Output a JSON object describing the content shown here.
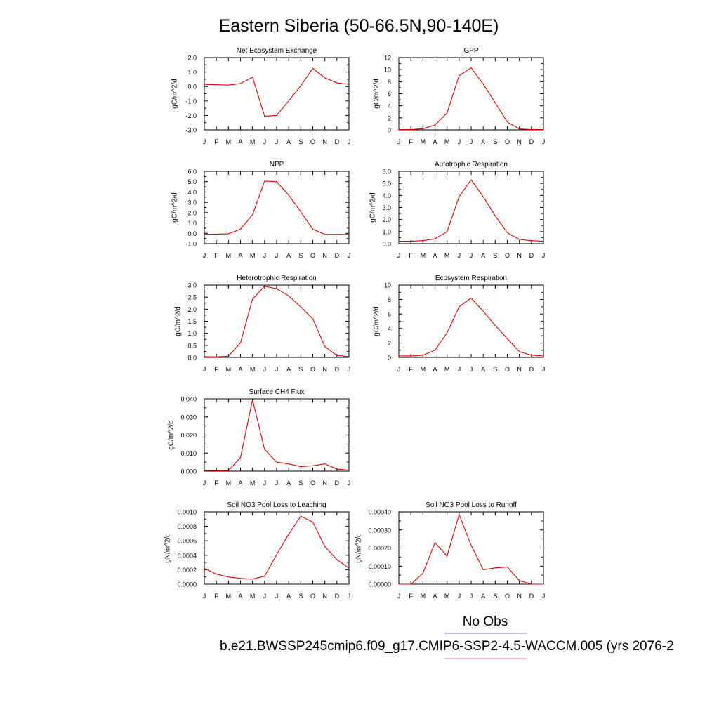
{
  "title": "Eastern Siberia (50-66.5N,90-140E)",
  "legend": {
    "obs_label": "No Obs",
    "obs_color": "#8080ff",
    "case_label": "b.e21.BWSSP245cmip6.f09_g17.CMIP6-SSP2-4.5-WACCM.005 (yrs 2076-2",
    "case_color": "#ff8080"
  },
  "line_color": "#dd0000",
  "chart_data": [
    {
      "type": "line",
      "title": "Net Ecosystem Exchange",
      "ylabel": "gC/m^2/d",
      "categories": [
        "J",
        "F",
        "M",
        "A",
        "M",
        "J",
        "J",
        "A",
        "S",
        "O",
        "N",
        "D",
        "J"
      ],
      "ylim": [
        -3.0,
        2.0
      ],
      "yticks": [
        "-3.0",
        "-2.0",
        "-1.0",
        "0.0",
        "1.0",
        "2.0"
      ],
      "minor_per_major": 2,
      "values": [
        0.15,
        0.12,
        0.1,
        0.2,
        0.65,
        -2.05,
        -2.0,
        -1.0,
        0.05,
        1.25,
        0.6,
        0.25,
        0.15
      ]
    },
    {
      "type": "line",
      "title": "GPP",
      "ylabel": "gC/m^2/d",
      "categories": [
        "J",
        "F",
        "M",
        "A",
        "M",
        "J",
        "J",
        "A",
        "S",
        "O",
        "N",
        "D",
        "J"
      ],
      "ylim": [
        0,
        12
      ],
      "yticks": [
        "0",
        "2",
        "4",
        "6",
        "8",
        "10",
        "12"
      ],
      "minor_per_major": 2,
      "values": [
        0.05,
        0.05,
        0.2,
        0.8,
        2.8,
        9.0,
        10.3,
        7.6,
        4.5,
        1.3,
        0.15,
        0.05,
        0.05
      ]
    },
    {
      "type": "line",
      "title": "NPP",
      "ylabel": "gC/m^2/d",
      "categories": [
        "J",
        "F",
        "M",
        "A",
        "M",
        "J",
        "J",
        "A",
        "S",
        "O",
        "N",
        "D",
        "J"
      ],
      "ylim": [
        -1.0,
        6.0
      ],
      "yticks": [
        "-1.0",
        "0.0",
        "1.0",
        "2.0",
        "3.0",
        "4.0",
        "5.0",
        "6.0"
      ],
      "minor_per_major": 2,
      "values": [
        -0.1,
        -0.08,
        -0.05,
        0.4,
        1.8,
        5.05,
        5.0,
        3.7,
        2.1,
        0.4,
        -0.1,
        -0.1,
        -0.1
      ]
    },
    {
      "type": "line",
      "title": "Autotrophic Respiration",
      "ylabel": "gC/m^2/d",
      "categories": [
        "J",
        "F",
        "M",
        "A",
        "M",
        "J",
        "J",
        "A",
        "S",
        "O",
        "N",
        "D",
        "J"
      ],
      "ylim": [
        0.0,
        6.0
      ],
      "yticks": [
        "0.0",
        "1.0",
        "2.0",
        "3.0",
        "4.0",
        "5.0",
        "6.0"
      ],
      "minor_per_major": 2,
      "values": [
        0.2,
        0.2,
        0.25,
        0.4,
        1.0,
        3.9,
        5.3,
        3.9,
        2.3,
        0.9,
        0.35,
        0.25,
        0.2
      ]
    },
    {
      "type": "line",
      "title": "Heterotrophic Respiration",
      "ylabel": "gC/m^2/d",
      "categories": [
        "J",
        "F",
        "M",
        "A",
        "M",
        "J",
        "J",
        "A",
        "S",
        "O",
        "N",
        "D",
        "J"
      ],
      "ylim": [
        0.0,
        3.0
      ],
      "yticks": [
        "0.0",
        "0.5",
        "1.0",
        "1.5",
        "2.0",
        "2.5",
        "3.0"
      ],
      "minor_per_major": 2,
      "values": [
        0.03,
        0.02,
        0.05,
        0.6,
        2.42,
        2.95,
        2.85,
        2.55,
        2.1,
        1.6,
        0.45,
        0.08,
        0.03
      ]
    },
    {
      "type": "line",
      "title": "Ecosystem Respiration",
      "ylabel": "gC/m^2/d",
      "categories": [
        "J",
        "F",
        "M",
        "A",
        "M",
        "J",
        "J",
        "A",
        "S",
        "O",
        "N",
        "D",
        "J"
      ],
      "ylim": [
        0,
        10
      ],
      "yticks": [
        "0",
        "2",
        "4",
        "6",
        "8",
        "10"
      ],
      "minor_per_major": 2,
      "values": [
        0.2,
        0.2,
        0.3,
        1.0,
        3.4,
        7.0,
        8.2,
        6.4,
        4.4,
        2.6,
        0.8,
        0.3,
        0.2
      ]
    },
    {
      "type": "line",
      "title": "Surface CH4 Flux",
      "ylabel": "gC/m^2/d",
      "categories": [
        "J",
        "F",
        "M",
        "A",
        "M",
        "J",
        "J",
        "A",
        "S",
        "O",
        "N",
        "D",
        "J"
      ],
      "ylim": [
        0.0,
        0.04
      ],
      "yticks": [
        "0.000",
        "0.010",
        "0.020",
        "0.030",
        "0.040"
      ],
      "minor_per_major": 2,
      "values": [
        0.0005,
        0.0003,
        0.0003,
        0.0075,
        0.0395,
        0.012,
        0.005,
        0.004,
        0.0025,
        0.003,
        0.004,
        0.0012,
        0.0005
      ]
    },
    {
      "type": "line",
      "title": "Soil NO3 Pool Loss to Leaching",
      "ylabel": "gN/m^2/d",
      "categories": [
        "J",
        "F",
        "M",
        "A",
        "M",
        "J",
        "J",
        "A",
        "S",
        "O",
        "N",
        "D",
        "J"
      ],
      "ylim": [
        0.0,
        0.001
      ],
      "yticks": [
        "0.0000",
        "0.0002",
        "0.0004",
        "0.0006",
        "0.0008",
        "0.0010"
      ],
      "minor_per_major": 2,
      "values": [
        0.00022,
        0.00014,
        0.0001,
        8e-05,
        7e-05,
        0.00011,
        0.00041,
        0.00069,
        0.00094,
        0.00086,
        0.00052,
        0.00034,
        0.00022
      ]
    },
    {
      "type": "line",
      "title": "Soil NO3 Pool Loss to Runoff",
      "ylabel": "gN/m^2/d",
      "categories": [
        "J",
        "F",
        "M",
        "A",
        "M",
        "J",
        "J",
        "A",
        "S",
        "O",
        "N",
        "D",
        "J"
      ],
      "ylim": [
        0.0,
        0.0004
      ],
      "yticks": [
        "0.00000",
        "0.00010",
        "0.00020",
        "0.00030",
        "0.00040"
      ],
      "minor_per_major": 2,
      "values": [
        0.0,
        0.0,
        6e-05,
        0.00023,
        0.000155,
        0.000385,
        0.000215,
        8e-05,
        9e-05,
        9.5e-05,
        2e-05,
        0.0,
        0.0
      ]
    }
  ]
}
